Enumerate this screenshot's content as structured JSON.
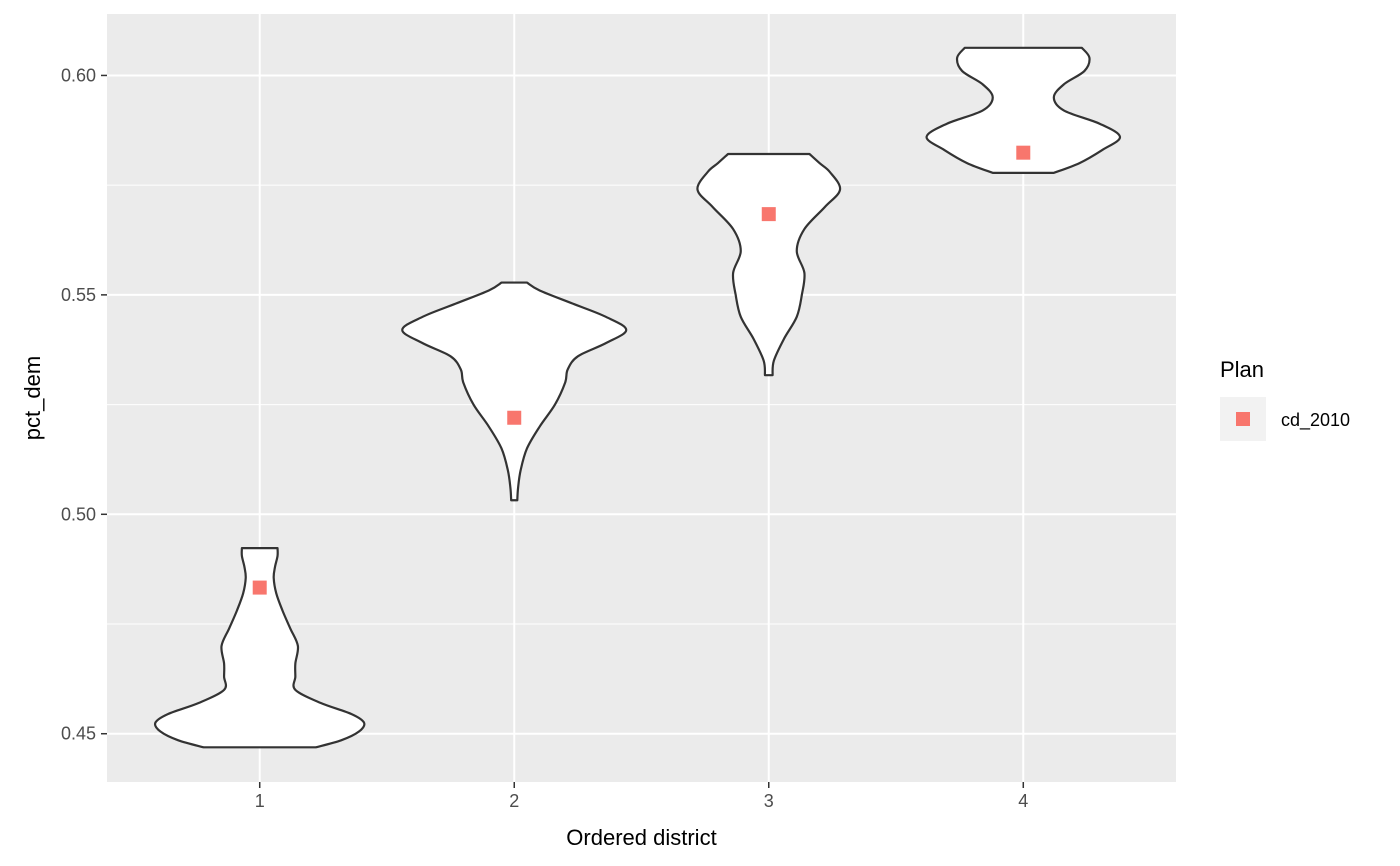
{
  "chart_data": {
    "type": "violin",
    "title": "",
    "xlabel": "Ordered district",
    "ylabel": "pct_dem",
    "ylim": [
      0.439,
      0.614
    ],
    "grid": true,
    "legend_position": "right",
    "categories": [
      "1",
      "2",
      "3",
      "4"
    ],
    "y_ticks": [
      0.45,
      0.5,
      0.55,
      0.6
    ],
    "y_tick_labels": [
      "0.45",
      "0.50",
      "0.55",
      "0.60"
    ],
    "x_tick_labels": [
      "1",
      "2",
      "3",
      "4"
    ],
    "violins": [
      {
        "category": "1",
        "profile": [
          {
            "y": 0.4469,
            "w": 0.22
          },
          {
            "y": 0.4485,
            "w": 0.32
          },
          {
            "y": 0.4505,
            "w": 0.39
          },
          {
            "y": 0.4525,
            "w": 0.41
          },
          {
            "y": 0.4545,
            "w": 0.36
          },
          {
            "y": 0.457,
            "w": 0.24
          },
          {
            "y": 0.46,
            "w": 0.14
          },
          {
            "y": 0.463,
            "w": 0.14
          },
          {
            "y": 0.466,
            "w": 0.14
          },
          {
            "y": 0.47,
            "w": 0.15
          },
          {
            "y": 0.474,
            "w": 0.12
          },
          {
            "y": 0.478,
            "w": 0.09
          },
          {
            "y": 0.482,
            "w": 0.065
          },
          {
            "y": 0.4855,
            "w": 0.055
          },
          {
            "y": 0.488,
            "w": 0.06
          },
          {
            "y": 0.4905,
            "w": 0.07
          },
          {
            "y": 0.4923,
            "w": 0.07
          }
        ]
      },
      {
        "category": "2",
        "profile": [
          {
            "y": 0.5032,
            "w": 0.012
          },
          {
            "y": 0.506,
            "w": 0.015
          },
          {
            "y": 0.51,
            "w": 0.025
          },
          {
            "y": 0.515,
            "w": 0.05
          },
          {
            "y": 0.52,
            "w": 0.1
          },
          {
            "y": 0.525,
            "w": 0.16
          },
          {
            "y": 0.53,
            "w": 0.2
          },
          {
            "y": 0.533,
            "w": 0.21
          },
          {
            "y": 0.536,
            "w": 0.25
          },
          {
            "y": 0.539,
            "w": 0.36
          },
          {
            "y": 0.542,
            "w": 0.44
          },
          {
            "y": 0.545,
            "w": 0.36
          },
          {
            "y": 0.548,
            "w": 0.23
          },
          {
            "y": 0.551,
            "w": 0.1
          },
          {
            "y": 0.5528,
            "w": 0.05
          }
        ]
      },
      {
        "category": "3",
        "profile": [
          {
            "y": 0.5317,
            "w": 0.015
          },
          {
            "y": 0.535,
            "w": 0.02
          },
          {
            "y": 0.54,
            "w": 0.06
          },
          {
            "y": 0.545,
            "w": 0.11
          },
          {
            "y": 0.55,
            "w": 0.13
          },
          {
            "y": 0.555,
            "w": 0.14
          },
          {
            "y": 0.56,
            "w": 0.11
          },
          {
            "y": 0.565,
            "w": 0.14
          },
          {
            "y": 0.57,
            "w": 0.22
          },
          {
            "y": 0.574,
            "w": 0.28
          },
          {
            "y": 0.578,
            "w": 0.24
          },
          {
            "y": 0.58,
            "w": 0.2
          },
          {
            "y": 0.5821,
            "w": 0.16
          }
        ]
      },
      {
        "category": "4",
        "profile": [
          {
            "y": 0.5778,
            "w": 0.12
          },
          {
            "y": 0.58,
            "w": 0.22
          },
          {
            "y": 0.583,
            "w": 0.31
          },
          {
            "y": 0.586,
            "w": 0.38
          },
          {
            "y": 0.589,
            "w": 0.3
          },
          {
            "y": 0.592,
            "w": 0.16
          },
          {
            "y": 0.595,
            "w": 0.12
          },
          {
            "y": 0.598,
            "w": 0.16
          },
          {
            "y": 0.601,
            "w": 0.24
          },
          {
            "y": 0.604,
            "w": 0.26
          },
          {
            "y": 0.6063,
            "w": 0.23
          }
        ]
      }
    ],
    "series": [
      {
        "name": "cd_2010",
        "color": "#F8766D",
        "marker": "square",
        "values": [
          0.4833,
          0.522,
          0.5684,
          0.5824
        ]
      }
    ],
    "legend": {
      "title": "Plan",
      "items": [
        {
          "label": "cd_2010",
          "color": "#F8766D",
          "marker": "square"
        }
      ]
    }
  }
}
